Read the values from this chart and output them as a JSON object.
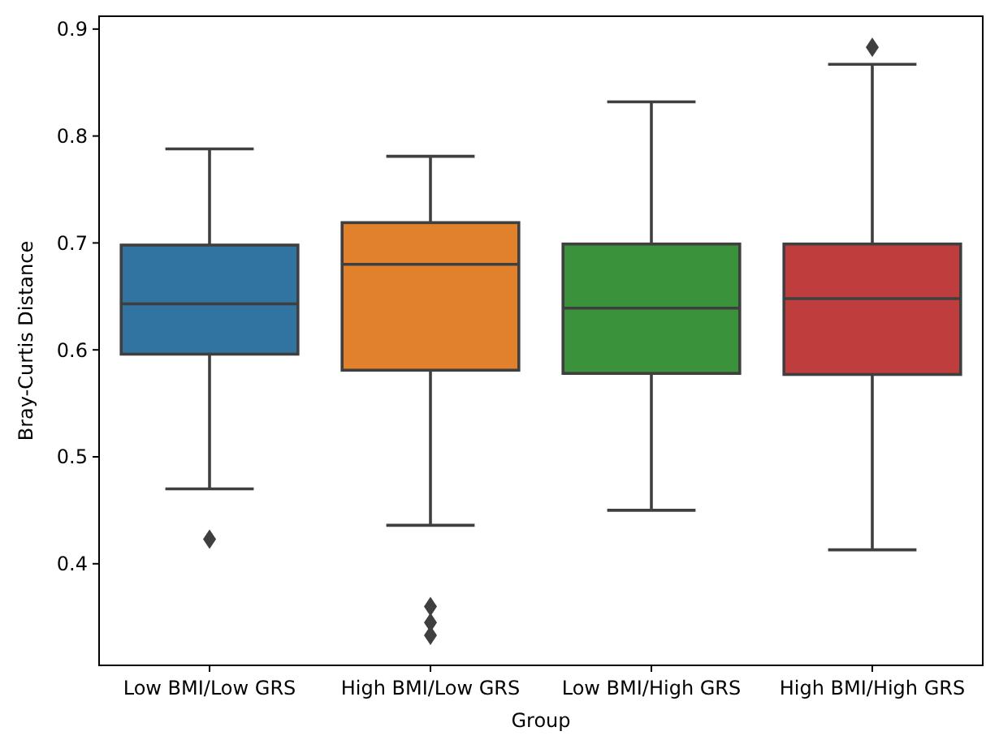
{
  "chart_data": {
    "type": "box",
    "xlabel": "Group",
    "ylabel": "Bray-Curtis Distance",
    "categories": [
      "Low BMI/Low GRS",
      "High BMI/Low GRS",
      "Low BMI/High GRS",
      "High BMI/High GRS"
    ],
    "colors": [
      "#3274a1",
      "#e1812c",
      "#3a923a",
      "#c03d3e"
    ],
    "boxes": [
      {
        "low": 0.47,
        "q1": 0.596,
        "median": 0.643,
        "q3": 0.698,
        "high": 0.788,
        "outliers": [
          0.423
        ]
      },
      {
        "low": 0.436,
        "q1": 0.581,
        "median": 0.68,
        "q3": 0.719,
        "high": 0.781,
        "outliers": [
          0.36,
          0.345,
          0.333
        ]
      },
      {
        "low": 0.45,
        "q1": 0.578,
        "median": 0.639,
        "q3": 0.699,
        "high": 0.832
      },
      {
        "low": 0.413,
        "q1": 0.577,
        "median": 0.648,
        "q3": 0.699,
        "high": 0.867,
        "outliers": [
          0.883
        ]
      }
    ],
    "ylim": [
      0.305,
      0.912
    ],
    "yticks": [
      0.4,
      0.5,
      0.6,
      0.7,
      0.8,
      0.9
    ]
  }
}
